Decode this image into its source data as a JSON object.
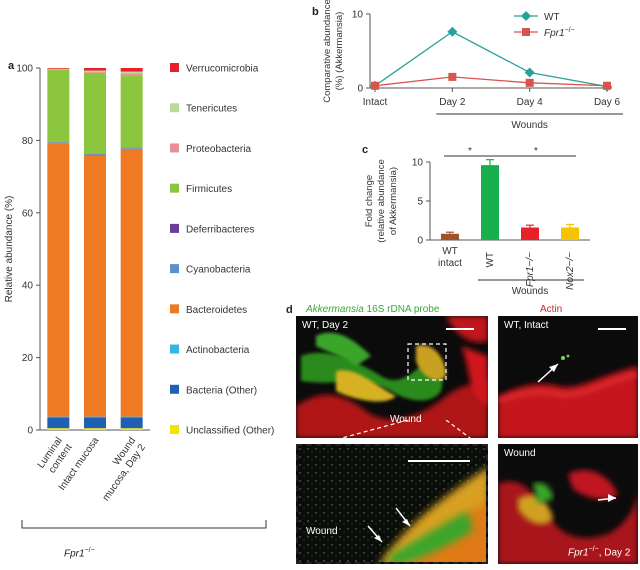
{
  "panel_a": {
    "letter": "a",
    "group_label": "Fpr1",
    "group_label_sup": "−/−",
    "chart_data": {
      "type": "bar",
      "stacked": true,
      "categories": [
        "Luminal content",
        "Intact mucosa",
        "Wound mucosa, Day 2"
      ],
      "category_lines": [
        [
          "Luminal",
          "content"
        ],
        [
          "Intact mucosa"
        ],
        [
          "Wound",
          "mucosa, Day 2"
        ]
      ],
      "ylabel": "Relative abundance (%)",
      "ylim": [
        0,
        100
      ],
      "yticks": [
        0,
        20,
        40,
        60,
        80,
        100
      ],
      "series": [
        {
          "name": "Unclassified (Other)",
          "color": "#f2e600",
          "values": [
            0.5,
            0.5,
            0.5
          ]
        },
        {
          "name": "Bacteria (Other)",
          "color": "#1f5fb4",
          "values": [
            3,
            3,
            3
          ]
        },
        {
          "name": "Actinobacteria",
          "color": "#35b4e6",
          "values": [
            0.2,
            0.2,
            0.2
          ]
        },
        {
          "name": "Bacteroidetes",
          "color": "#ee7a24",
          "values": [
            75.5,
            72,
            74
          ]
        },
        {
          "name": "Cyanobacteria",
          "color": "#5b8fd0",
          "values": [
            0.2,
            0.4,
            0.3
          ]
        },
        {
          "name": "Deferribacteres",
          "color": "#6a3d9a",
          "values": [
            0.1,
            0.1,
            0.1
          ]
        },
        {
          "name": "Firmicutes",
          "color": "#8cc63f",
          "values": [
            20,
            22.5,
            19.7
          ]
        },
        {
          "name": "Proteobacteria",
          "color": "#e8909a",
          "values": [
            0.2,
            0.3,
            0.7
          ]
        },
        {
          "name": "Tenericutes",
          "color": "#b8dc98",
          "values": [
            0.1,
            0.3,
            0.5
          ]
        },
        {
          "name": "Verrucomicrobia",
          "color": "#e8202a",
          "values": [
            0.2,
            0.7,
            1.0
          ]
        }
      ]
    }
  },
  "panel_b": {
    "letter": "b",
    "chart_data": {
      "type": "line",
      "categories": [
        "Intact",
        "Day 2",
        "Day 4",
        "Day 6"
      ],
      "bracket_label": "Wounds",
      "ylabel_lines": [
        "Comparative abundance",
        "(%) (Akkermansia)"
      ],
      "ylim": [
        0,
        10
      ],
      "yticks": [
        0,
        10
      ],
      "series": [
        {
          "name": "WT",
          "color": "#2aa198",
          "marker": "diamond",
          "values": [
            0.3,
            7.6,
            2.1,
            0.2
          ]
        },
        {
          "name": "Fpr1",
          "name_sup": "−/−",
          "color": "#d9534f",
          "marker": "square",
          "values": [
            0.3,
            1.5,
            0.7,
            0.3
          ]
        }
      ]
    }
  },
  "panel_c": {
    "letter": "c",
    "significance": [
      "*",
      "*"
    ],
    "bracket_label": "Wounds",
    "chart_data": {
      "type": "bar",
      "categories": [
        "WT intact",
        "WT",
        "Fpr1−/−",
        "Nox2−/−"
      ],
      "category_lines": [
        [
          "WT",
          "intact"
        ],
        [
          "WT"
        ],
        [
          "Fpr1−/−"
        ],
        [
          "Nox2−/−"
        ]
      ],
      "ylabel_lines": [
        "Fold change",
        "(relative abundance",
        "of Akkermansia)"
      ],
      "ylim": [
        0,
        10
      ],
      "yticks": [
        0,
        5,
        10
      ],
      "colors": [
        "#a0522d",
        "#18b04e",
        "#e8202a",
        "#f5c400"
      ],
      "values": [
        0.8,
        9.6,
        1.6,
        1.6
      ],
      "errors": [
        0.2,
        0.7,
        0.3,
        0.4
      ]
    }
  },
  "panel_d": {
    "letter": "d",
    "header_green_prefix": "Akkermansia",
    "header_green_suffix": " 16S rDNA probe",
    "header_red": "Actin",
    "tl_label": "WT, Day 2",
    "tl_wound": "Wound",
    "bl_wound": "Wound",
    "tr_label": "WT, Intact",
    "br_wound": "Wound",
    "br_geno": "Fpr1",
    "br_sup": "−/−",
    "br_day": ", Day 2"
  }
}
